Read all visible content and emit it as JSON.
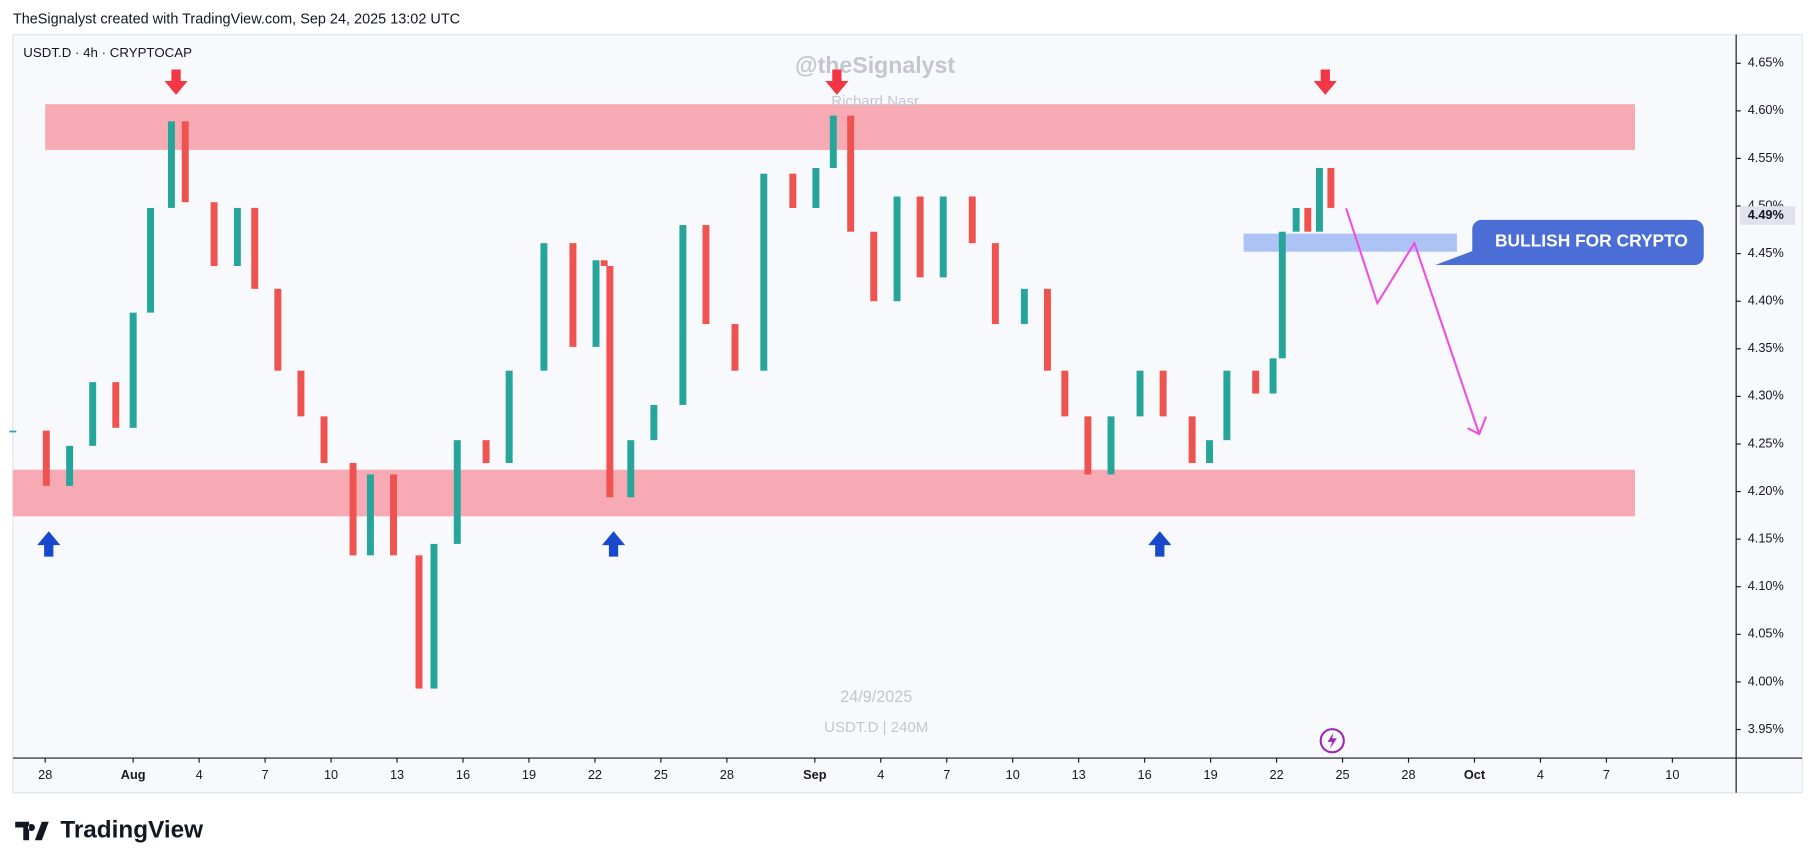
{
  "header": "TheSignalyst created with TradingView.com, Sep 24, 2025 13:02 UTC",
  "footer": "TradingView",
  "chart_data": {
    "type": "candlestick",
    "title": "USDT.D · 4h · CRYPTOCAP",
    "watermark": "@theSignalyst",
    "watermark_sub": "Richard Nasr",
    "date_stamp": "24/9/2025",
    "symbol_stamp": "USDT.D | 240M",
    "annotation": "BULLISH FOR CRYPTO",
    "up_color": "#26a69a",
    "down_color": "#ef5350",
    "x": [
      -1.47,
      0.05,
      1.11,
      2.16,
      3.21,
      4.0,
      4.79,
      5.74,
      6.37,
      7.68,
      8.74,
      9.53,
      10.58,
      11.63,
      12.68,
      14.0,
      14.79,
      15.84,
      17.0,
      17.68,
      18.74,
      20.05,
      21.1,
      22.68,
      24.0,
      25.05,
      25.42,
      25.68,
      26.63,
      27.68,
      29.0,
      30.05,
      31.37,
      32.68,
      34.0,
      35.05,
      35.84,
      36.63,
      37.68,
      38.74,
      39.79,
      40.84,
      42.16,
      43.21,
      44.53,
      45.58,
      46.37,
      47.42,
      48.47,
      49.79,
      50.84,
      52.16,
      52.95,
      53.74,
      55.05,
      55.84,
      56.26,
      56.89,
      57.42,
      57.95,
      58.47
    ],
    "values": [
      4.264,
      4.206,
      4.248,
      4.315,
      4.267,
      4.388,
      4.498,
      4.589,
      4.504,
      4.437,
      4.498,
      4.413,
      4.327,
      4.279,
      4.23,
      4.133,
      4.218,
      4.133,
      3.993,
      4.145,
      4.254,
      4.23,
      4.327,
      4.461,
      4.352,
      4.443,
      4.437,
      4.194,
      4.254,
      4.291,
      4.48,
      4.376,
      4.327,
      4.534,
      4.498,
      4.54,
      4.595,
      4.473,
      4.4,
      4.51,
      4.425,
      4.51,
      4.461,
      4.376,
      4.413,
      4.327,
      4.279,
      4.218,
      4.279,
      4.327,
      4.279,
      4.23,
      4.254,
      4.327,
      4.303,
      4.34,
      4.473,
      4.498,
      4.473,
      4.54,
      4.498
    ],
    "zones": [
      {
        "x": [
          0,
          72.3
        ],
        "y": [
          4.559,
          4.607
        ],
        "color": "#f7aab3"
      },
      {
        "x": [
          -1.47,
          72.3
        ],
        "y": [
          4.174,
          4.223
        ],
        "color": "#f7aab3"
      },
      {
        "x": [
          54.5,
          64.2
        ],
        "y": [
          4.452,
          4.471
        ],
        "color": "#aec3f5"
      }
    ],
    "last_price": {
      "value": 4.49,
      "label": "4.49%"
    },
    "xlim": [
      -1.47,
      76.9
    ],
    "ylim": [
      3.92,
      4.68
    ],
    "xticks": [
      {
        "value": 0,
        "label": "28"
      },
      {
        "value": 4,
        "label": "Aug"
      },
      {
        "value": 7,
        "label": "4"
      },
      {
        "value": 10,
        "label": "7"
      },
      {
        "value": 13,
        "label": "10"
      },
      {
        "value": 16,
        "label": "13"
      },
      {
        "value": 19,
        "label": "16"
      },
      {
        "value": 22,
        "label": "19"
      },
      {
        "value": 25,
        "label": "22"
      },
      {
        "value": 28,
        "label": "25"
      },
      {
        "value": 31,
        "label": "28"
      },
      {
        "value": 35,
        "label": "Sep"
      },
      {
        "value": 38,
        "label": "4"
      },
      {
        "value": 41,
        "label": "7"
      },
      {
        "value": 44,
        "label": "10"
      },
      {
        "value": 47,
        "label": "13"
      },
      {
        "value": 50,
        "label": "16"
      },
      {
        "value": 53,
        "label": "19"
      },
      {
        "value": 56,
        "label": "22"
      },
      {
        "value": 59,
        "label": "25"
      },
      {
        "value": 62,
        "label": "28"
      },
      {
        "value": 65,
        "label": "Oct"
      },
      {
        "value": 68,
        "label": "4"
      },
      {
        "value": 71,
        "label": "7"
      },
      {
        "value": 74,
        "label": "10"
      }
    ],
    "yticks": [
      {
        "value": 3.95,
        "label": "3.95%"
      },
      {
        "value": 4.0,
        "label": "4.00%"
      },
      {
        "value": 4.05,
        "label": "4.05%"
      },
      {
        "value": 4.1,
        "label": "4.10%"
      },
      {
        "value": 4.15,
        "label": "4.15%"
      },
      {
        "value": 4.2,
        "label": "4.20%"
      },
      {
        "value": 4.25,
        "label": "4.25%"
      },
      {
        "value": 4.3,
        "label": "4.30%"
      },
      {
        "value": 4.35,
        "label": "4.35%"
      },
      {
        "value": 4.4,
        "label": "4.40%"
      },
      {
        "value": 4.45,
        "label": "4.45%"
      },
      {
        "value": 4.5,
        "label": "4.50%"
      },
      {
        "value": 4.55,
        "label": "4.55%"
      },
      {
        "value": 4.6,
        "label": "4.60%"
      },
      {
        "value": 4.65,
        "label": "4.65%"
      }
    ]
  }
}
